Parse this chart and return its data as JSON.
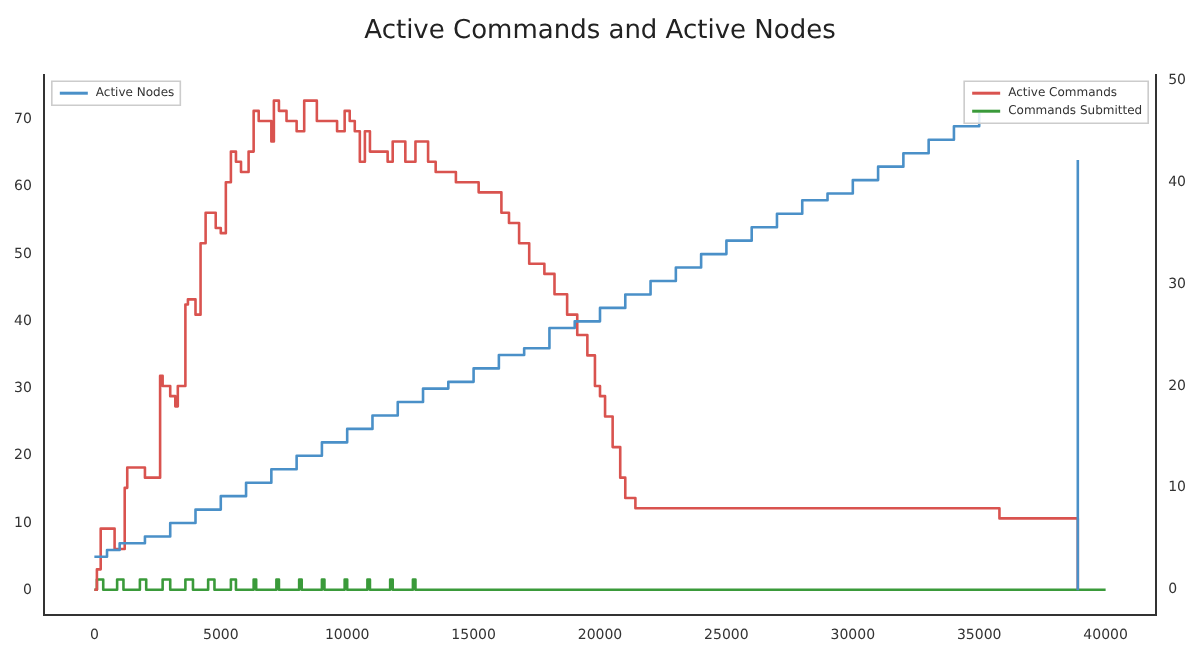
{
  "chart_data": {
    "type": "step",
    "title": "Active Commands and Active Nodes",
    "xlim": [
      -2000,
      42000
    ],
    "xticks": [
      0,
      5000,
      10000,
      15000,
      20000,
      25000,
      30000,
      35000,
      40000
    ],
    "ylim": [
      -3.7,
      76.6
    ],
    "yticks": [
      0,
      10,
      20,
      30,
      40,
      50,
      60,
      70
    ],
    "y2lim": [
      -2.5,
      50.5
    ],
    "y2ticks": [
      0,
      10,
      20,
      30,
      40,
      50
    ],
    "grid": false,
    "legend": "top",
    "series": [
      {
        "name": "Active Nodes",
        "color": "#4a90c8",
        "axis": "y",
        "x": [
          0,
          500,
          1000,
          2000,
          3000,
          4000,
          5000,
          6000,
          7000,
          8000,
          9000,
          10000,
          11000,
          12000,
          13000,
          14000,
          15000,
          16000,
          17000,
          18000,
          19000,
          20000,
          21000,
          22000,
          23000,
          24000,
          25000,
          26000,
          27000,
          28000,
          29000,
          30000,
          31000,
          32000,
          33000,
          34000,
          35000,
          36000,
          37000,
          38000,
          38900,
          38900
        ],
        "values": [
          5,
          6,
          7,
          8,
          10,
          12,
          14,
          16,
          18,
          20,
          22,
          24,
          26,
          28,
          30,
          31,
          33,
          35,
          36,
          39,
          40,
          42,
          44,
          46,
          48,
          50,
          52,
          54,
          56,
          58,
          59,
          61,
          63,
          65,
          67,
          69,
          71,
          null,
          null,
          null,
          64,
          0
        ]
      },
      {
        "name": "Active Commands",
        "color": "#d9534f",
        "axis": "y2",
        "x": [
          0,
          100,
          250,
          600,
          800,
          1000,
          1200,
          1300,
          1800,
          2000,
          2200,
          2600,
          2700,
          3000,
          3200,
          3300,
          3600,
          3700,
          4000,
          4200,
          4400,
          4700,
          4800,
          5000,
          5200,
          5400,
          5600,
          5800,
          6000,
          6100,
          6300,
          6500,
          6800,
          7000,
          7100,
          7300,
          7600,
          7800,
          8000,
          8300,
          8500,
          8800,
          9000,
          9400,
          9600,
          9800,
          9900,
          10100,
          10300,
          10500,
          10700,
          10900,
          11300,
          11600,
          11800,
          12000,
          12300,
          12600,
          12700,
          13200,
          13500,
          13800,
          14300,
          15200,
          16000,
          16100,
          16400,
          16800,
          17200,
          17800,
          18200,
          18700,
          19100,
          19500,
          19800,
          20000,
          20200,
          20500,
          20800,
          21000,
          21400,
          35800,
          38900,
          38900
        ],
        "values": [
          0,
          2,
          6,
          6,
          4,
          4,
          10,
          12,
          12,
          11,
          11,
          21,
          20,
          19,
          18,
          20,
          28,
          28.5,
          27,
          34,
          37,
          37,
          35.5,
          35,
          40,
          43,
          42,
          41,
          41,
          43,
          47,
          46,
          46,
          44,
          48,
          47,
          46,
          46,
          45,
          48,
          48,
          46,
          46,
          46,
          45,
          45,
          47,
          46,
          45,
          42,
          45,
          43,
          43,
          42,
          44,
          44,
          42,
          42,
          44,
          42,
          41,
          41,
          40,
          39,
          39,
          37,
          36,
          34,
          32,
          31,
          29,
          27,
          25,
          23,
          20,
          19,
          17,
          14,
          11,
          9,
          8,
          7,
          7,
          0
        ]
      },
      {
        "name": "Commands Submitted",
        "color": "#3a9a3a",
        "axis": "y2",
        "type": "line",
        "x": [
          0,
          100,
          100,
          350,
          350,
          900,
          900,
          1150,
          1150,
          1800,
          1800,
          2050,
          2050,
          2700,
          2700,
          3000,
          3000,
          3600,
          3600,
          3900,
          3900,
          4500,
          4500,
          4750,
          4750,
          5400,
          5400,
          5600,
          5600,
          6300,
          6300,
          6400,
          6400,
          7200,
          7200,
          7300,
          7300,
          8100,
          8100,
          8200,
          8200,
          9000,
          9000,
          9100,
          9100,
          9900,
          9900,
          10000,
          10000,
          10800,
          10800,
          10900,
          10900,
          11700,
          11700,
          11800,
          11800,
          12600,
          12600,
          12700,
          12700,
          40000
        ],
        "values": [
          0,
          0,
          1,
          1,
          0,
          0,
          1,
          1,
          0,
          0,
          1,
          1,
          0,
          0,
          1,
          1,
          0,
          0,
          1,
          1,
          0,
          0,
          1,
          1,
          0,
          0,
          1,
          1,
          0,
          0,
          1,
          1,
          0,
          0,
          1,
          1,
          0,
          0,
          1,
          1,
          0,
          0,
          1,
          1,
          0,
          0,
          1,
          1,
          0,
          0,
          1,
          1,
          0,
          0,
          1,
          1,
          0,
          0,
          1,
          1,
          0,
          0
        ]
      }
    ]
  }
}
